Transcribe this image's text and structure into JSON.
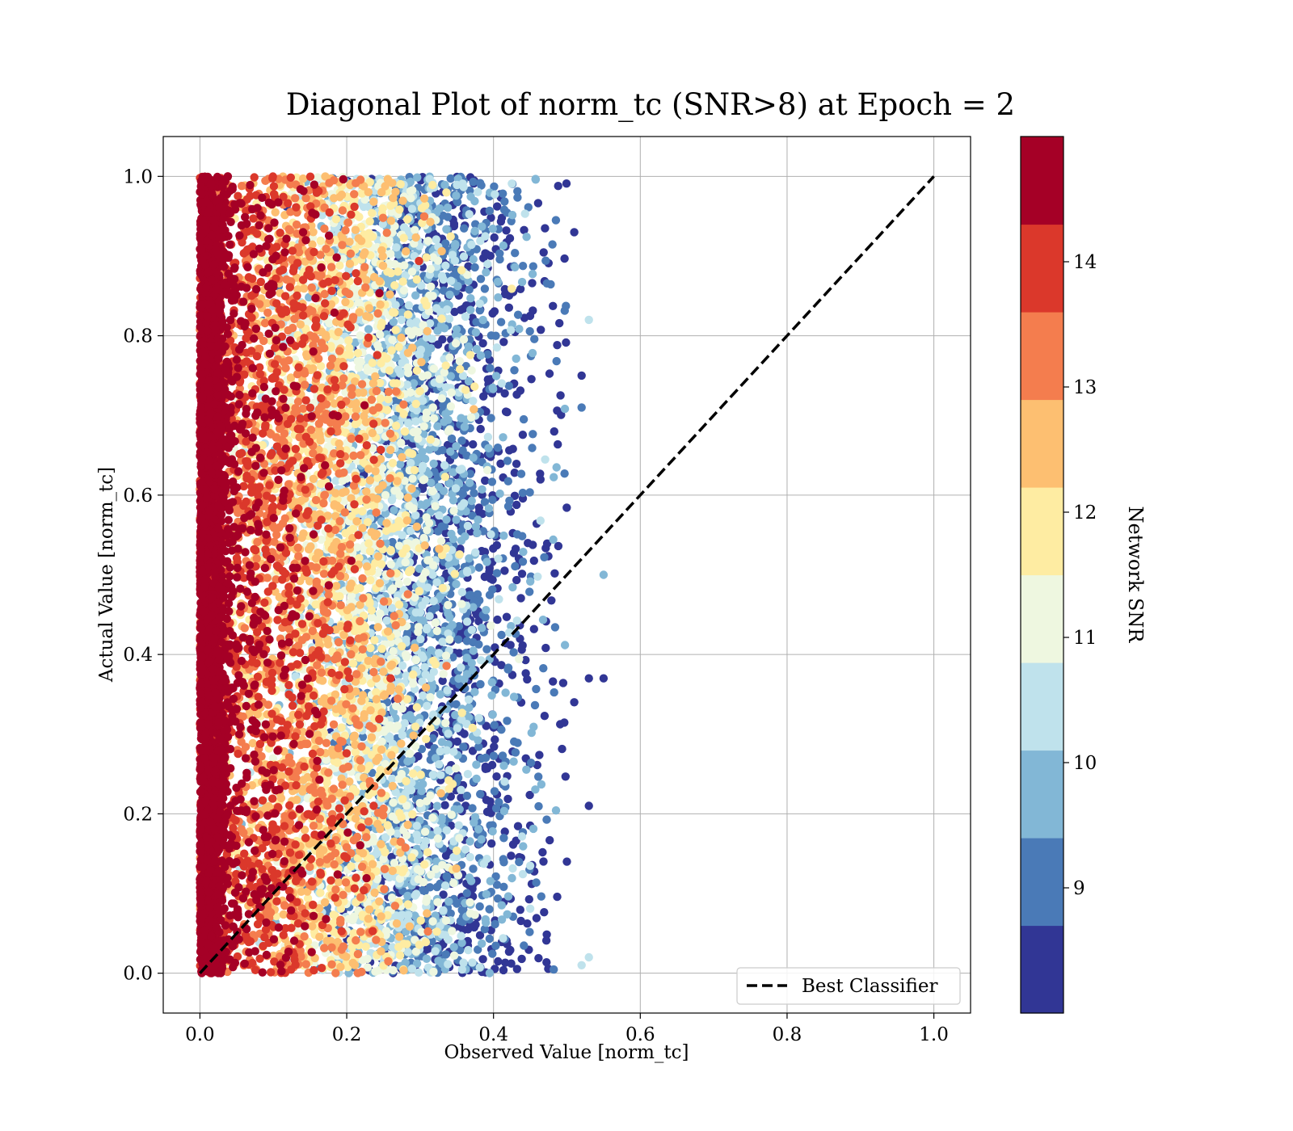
{
  "chart_data": {
    "type": "scatter",
    "title": "Diagonal Plot of norm_tc (SNR>8) at Epoch = 2",
    "xlabel": "Observed Value [norm_tc]",
    "ylabel": "Actual Value [norm_tc]",
    "xlim": [
      -0.05,
      1.05
    ],
    "ylim": [
      -0.05,
      1.05
    ],
    "x_ticks": [
      "0.0",
      "0.2",
      "0.4",
      "0.6",
      "0.8",
      "1.0"
    ],
    "y_ticks": [
      "0.0",
      "0.2",
      "0.4",
      "0.6",
      "0.8",
      "1.0"
    ],
    "grid": true,
    "legend": {
      "placement": "lower-right",
      "entries": [
        {
          "label": "Best Classifier",
          "style": "dashed",
          "color": "#000000"
        }
      ]
    },
    "reference_line": {
      "name": "Best Classifier",
      "x": [
        0,
        1
      ],
      "y": [
        0,
        1
      ]
    },
    "scatter_description": {
      "point_count_approx": 9000,
      "x_range": [
        0.0,
        0.56
      ],
      "y_range": [
        0.0,
        1.0
      ],
      "color_rule": "snr decreases as observed value increases; high SNR concentrated near x=0"
    },
    "outliers": [
      {
        "x": 0.53,
        "y": 0.82,
        "snr": 10.5
      },
      {
        "x": 0.55,
        "y": 0.5,
        "snr": 9.8
      },
      {
        "x": 0.53,
        "y": 0.37,
        "snr": 8.6
      },
      {
        "x": 0.55,
        "y": 0.37,
        "snr": 8.6
      },
      {
        "x": 0.52,
        "y": 0.75,
        "snr": 8.6
      },
      {
        "x": 0.52,
        "y": 0.71,
        "snr": 9.2
      },
      {
        "x": 0.51,
        "y": 0.93,
        "snr": 8.6
      },
      {
        "x": 0.53,
        "y": 0.21,
        "snr": 8.6
      },
      {
        "x": 0.53,
        "y": 0.02,
        "snr": 10.5
      },
      {
        "x": 0.52,
        "y": 0.01,
        "snr": 10.5
      },
      {
        "x": 0.5,
        "y": 0.14,
        "snr": 8.6
      },
      {
        "x": 0.51,
        "y": 0.34,
        "snr": 8.6
      }
    ],
    "colorbar": {
      "label": "Network SNR",
      "min": 8.0,
      "max": 15.0,
      "ticks": [
        "9",
        "10",
        "11",
        "12",
        "13",
        "14"
      ],
      "tick_values": [
        9,
        10,
        11,
        12,
        13,
        14
      ],
      "colors": [
        "#313695",
        "#4575b4",
        "#74add1",
        "#abd9e9",
        "#e0f3f8",
        "#ffffbf",
        "#fee090",
        "#fdae61",
        "#f46d43",
        "#d73027",
        "#a50026"
      ],
      "bands": [
        "#313695",
        "#4a7ab7",
        "#82b7d6",
        "#bfe2ec",
        "#eef7e0",
        "#feeca2",
        "#fdbf71",
        "#f47d4e",
        "#db382b",
        "#a50026"
      ]
    }
  }
}
